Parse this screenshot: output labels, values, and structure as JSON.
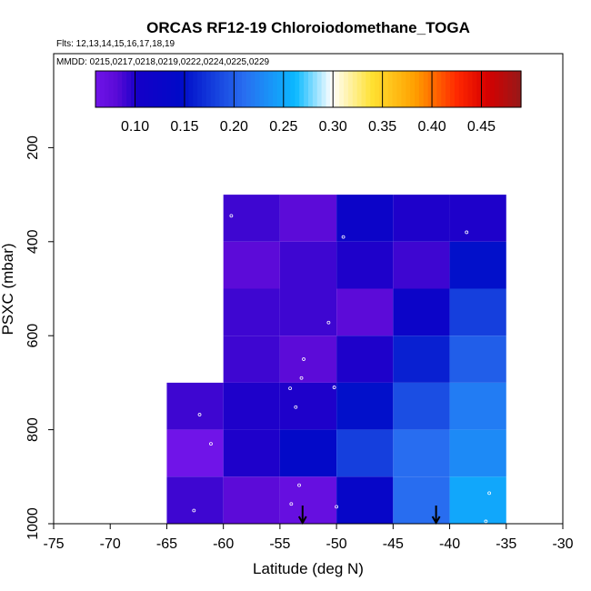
{
  "chart_data": {
    "type": "heatmap",
    "title": "ORCAS RF12-19 Chloroiodomethane_TOGA",
    "flights_text": "Flts: 12,13,14,15,16,17,18,19",
    "dates_text": "MMDD: 0215,0217,0218,0219,0222,0224,0225,0229",
    "xlabel": "Latitude (deg N)",
    "ylabel": "PSXC (mbar)",
    "xlim": [
      -75,
      -30
    ],
    "ylim": [
      1000,
      0
    ],
    "x_ticks": [
      -75,
      -70,
      -65,
      -60,
      -55,
      -50,
      -45,
      -40,
      -35,
      -30
    ],
    "x_tick_labels": [
      "-75",
      "-70",
      "-65",
      "-60",
      "-55",
      "-50",
      "-45",
      "-40",
      "-35",
      "-30"
    ],
    "y_ticks": [
      200,
      400,
      600,
      800,
      1000
    ],
    "y_tick_labels": [
      "200",
      "400",
      "600",
      "800",
      "1000"
    ],
    "colorbar": {
      "range": [
        0.06,
        0.49
      ],
      "ticks": [
        0.1,
        0.15,
        0.2,
        0.25,
        0.3,
        0.35,
        0.4,
        0.45
      ],
      "tick_labels": [
        "0.10",
        "0.15",
        "0.20",
        "0.25",
        "0.30",
        "0.35",
        "0.40",
        "0.45"
      ]
    },
    "cells": [
      {
        "lat": [
          -60,
          -55
        ],
        "p": [
          300,
          400
        ],
        "value": 0.09
      },
      {
        "lat": [
          -55,
          -50
        ],
        "p": [
          300,
          400
        ],
        "value": 0.08
      },
      {
        "lat": [
          -50,
          -45
        ],
        "p": [
          300,
          400
        ],
        "value": 0.12
      },
      {
        "lat": [
          -45,
          -40
        ],
        "p": [
          300,
          400
        ],
        "value": 0.1
      },
      {
        "lat": [
          -40,
          -35
        ],
        "p": [
          300,
          400
        ],
        "value": 0.1
      },
      {
        "lat": [
          -60,
          -55
        ],
        "p": [
          400,
          500
        ],
        "value": 0.08
      },
      {
        "lat": [
          -55,
          -50
        ],
        "p": [
          400,
          500
        ],
        "value": 0.09
      },
      {
        "lat": [
          -50,
          -45
        ],
        "p": [
          400,
          500
        ],
        "value": 0.1
      },
      {
        "lat": [
          -45,
          -40
        ],
        "p": [
          400,
          500
        ],
        "value": 0.09
      },
      {
        "lat": [
          -40,
          -35
        ],
        "p": [
          400,
          500
        ],
        "value": 0.15
      },
      {
        "lat": [
          -60,
          -55
        ],
        "p": [
          500,
          600
        ],
        "value": 0.09
      },
      {
        "lat": [
          -55,
          -50
        ],
        "p": [
          500,
          600
        ],
        "value": 0.09
      },
      {
        "lat": [
          -50,
          -45
        ],
        "p": [
          500,
          600
        ],
        "value": 0.08
      },
      {
        "lat": [
          -45,
          -40
        ],
        "p": [
          500,
          600
        ],
        "value": 0.12
      },
      {
        "lat": [
          -40,
          -35
        ],
        "p": [
          500,
          600
        ],
        "value": 0.18
      },
      {
        "lat": [
          -60,
          -55
        ],
        "p": [
          600,
          700
        ],
        "value": 0.09
      },
      {
        "lat": [
          -55,
          -50
        ],
        "p": [
          600,
          700
        ],
        "value": 0.08
      },
      {
        "lat": [
          -50,
          -45
        ],
        "p": [
          600,
          700
        ],
        "value": 0.1
      },
      {
        "lat": [
          -45,
          -40
        ],
        "p": [
          600,
          700
        ],
        "value": 0.16
      },
      {
        "lat": [
          -40,
          -35
        ],
        "p": [
          600,
          700
        ],
        "value": 0.2
      },
      {
        "lat": [
          -65,
          -60
        ],
        "p": [
          700,
          800
        ],
        "value": 0.09
      },
      {
        "lat": [
          -60,
          -55
        ],
        "p": [
          700,
          800
        ],
        "value": 0.1
      },
      {
        "lat": [
          -55,
          -50
        ],
        "p": [
          700,
          800
        ],
        "value": 0.1
      },
      {
        "lat": [
          -50,
          -45
        ],
        "p": [
          700,
          800
        ],
        "value": 0.15
      },
      {
        "lat": [
          -45,
          -40
        ],
        "p": [
          700,
          800
        ],
        "value": 0.19
      },
      {
        "lat": [
          -40,
          -35
        ],
        "p": [
          700,
          800
        ],
        "value": 0.22
      },
      {
        "lat": [
          -65,
          -60
        ],
        "p": [
          800,
          900
        ],
        "value": 0.06
      },
      {
        "lat": [
          -60,
          -55
        ],
        "p": [
          800,
          900
        ],
        "value": 0.1
      },
      {
        "lat": [
          -55,
          -50
        ],
        "p": [
          800,
          900
        ],
        "value": 0.14
      },
      {
        "lat": [
          -50,
          -45
        ],
        "p": [
          800,
          900
        ],
        "value": 0.18
      },
      {
        "lat": [
          -45,
          -40
        ],
        "p": [
          800,
          900
        ],
        "value": 0.21
      },
      {
        "lat": [
          -40,
          -35
        ],
        "p": [
          800,
          900
        ],
        "value": 0.23
      },
      {
        "lat": [
          -65,
          -60
        ],
        "p": [
          900,
          1000
        ],
        "value": 0.09
      },
      {
        "lat": [
          -60,
          -55
        ],
        "p": [
          900,
          1000
        ],
        "value": 0.08
      },
      {
        "lat": [
          -55,
          -50
        ],
        "p": [
          900,
          1000
        ],
        "value": 0.07
      },
      {
        "lat": [
          -50,
          -45
        ],
        "p": [
          900,
          1000
        ],
        "value": 0.13
      },
      {
        "lat": [
          -45,
          -40
        ],
        "p": [
          900,
          1000
        ],
        "value": 0.21
      },
      {
        "lat": [
          -40,
          -35
        ],
        "p": [
          900,
          1000
        ],
        "value": 0.25
      }
    ],
    "points": [
      {
        "lat": -59.3,
        "p": 345
      },
      {
        "lat": -49.4,
        "p": 390
      },
      {
        "lat": -38.5,
        "p": 380
      },
      {
        "lat": -50.7,
        "p": 572
      },
      {
        "lat": -52.9,
        "p": 650
      },
      {
        "lat": -53.1,
        "p": 690
      },
      {
        "lat": -54.1,
        "p": 712
      },
      {
        "lat": -50.2,
        "p": 710
      },
      {
        "lat": -53.6,
        "p": 752
      },
      {
        "lat": -62.1,
        "p": 768
      },
      {
        "lat": -61.1,
        "p": 830
      },
      {
        "lat": -53.3,
        "p": 918
      },
      {
        "lat": -54.0,
        "p": 958
      },
      {
        "lat": -50.0,
        "p": 964
      },
      {
        "lat": -62.6,
        "p": 972
      },
      {
        "lat": -36.5,
        "p": 935
      },
      {
        "lat": -36.8,
        "p": 995
      }
    ],
    "markers": [
      {
        "type": "arrow-down",
        "lat": -53.0
      },
      {
        "type": "arrow-down",
        "lat": -41.2
      }
    ]
  }
}
